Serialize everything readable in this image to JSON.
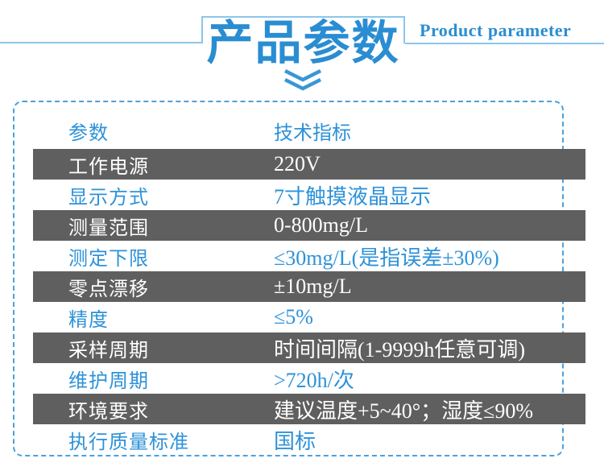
{
  "header": {
    "title": "产品参数",
    "subtitle": "Product parameter",
    "chevron_icon": "double-chevron-down-icon"
  },
  "colors": {
    "accent_blue": "#2A8DD2",
    "table_text_blue": "#2E92D8",
    "light_rule_blue": "#8CC6EA",
    "dashed_border_blue": "#4AA0DC",
    "dark_row_bg": "#5F5F5F",
    "dark_row_text": "#FFFFFF"
  },
  "table": {
    "columns": [
      "参数",
      "技术指标"
    ],
    "rows": [
      {
        "label": "工作电源",
        "value": "220V",
        "variant": "dark"
      },
      {
        "label": "显示方式",
        "value": "7寸触摸液晶显示",
        "variant": "light"
      },
      {
        "label": "测量范围",
        "value": "0-800mg/L",
        "variant": "dark"
      },
      {
        "label": "测定下限",
        "value": "≤30mg/L(是指误差±30%)",
        "variant": "light"
      },
      {
        "label": "零点漂移",
        "value": "±10mg/L",
        "variant": "dark"
      },
      {
        "label": "精度",
        "value": "≤5%",
        "variant": "light"
      },
      {
        "label": "采样周期",
        "value": "时间间隔(1-9999h任意可调)",
        "variant": "dark"
      },
      {
        "label": "维护周期",
        "value": ">720h/次",
        "variant": "light"
      },
      {
        "label": "环境要求",
        "value": "建议温度+5~40°；湿度≤90%",
        "variant": "dark"
      },
      {
        "label": "执行质量标准",
        "value": "国标",
        "variant": "light"
      }
    ]
  }
}
